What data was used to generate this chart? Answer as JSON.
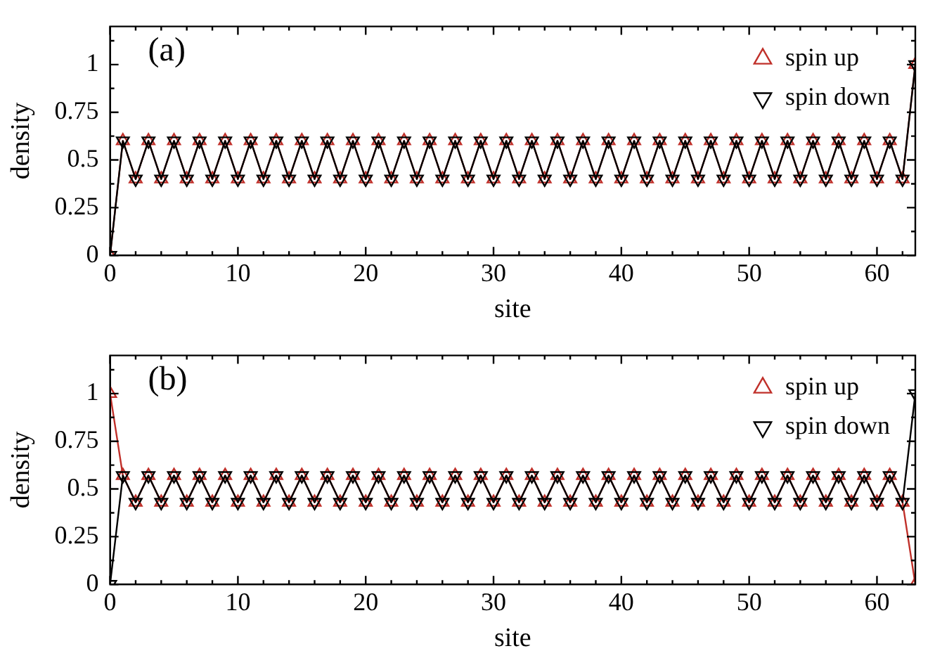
{
  "chart_data": [
    {
      "type": "line",
      "xlabel": "site",
      "ylabel": "density",
      "annotations": [
        "(a)"
      ],
      "legend": "top right",
      "marker": "triangle",
      "grid": false,
      "x": [
        0,
        1,
        2,
        3,
        4,
        5,
        6,
        7,
        8,
        9,
        10,
        11,
        12,
        13,
        14,
        15,
        16,
        17,
        18,
        19,
        20,
        21,
        22,
        23,
        24,
        25,
        26,
        27,
        28,
        29,
        30,
        31,
        32,
        33,
        34,
        35,
        36,
        37,
        38,
        39,
        40,
        41,
        42,
        43,
        44,
        45,
        46,
        47,
        48,
        49,
        50,
        51,
        52,
        53,
        54,
        55,
        56,
        57,
        58,
        59,
        60,
        61,
        62,
        63
      ],
      "xlim": [
        0,
        63
      ],
      "ylim": [
        0,
        1.2
      ],
      "xticks": [
        0,
        {
          "value": 2,
          "label": null
        },
        {
          "value": 4,
          "label": null
        },
        {
          "value": 6,
          "label": null
        },
        {
          "value": 8,
          "label": null
        },
        10,
        {
          "value": 12,
          "label": null
        },
        {
          "value": 14,
          "label": null
        },
        {
          "value": 16,
          "label": null
        },
        {
          "value": 18,
          "label": null
        },
        20,
        {
          "value": 22,
          "label": null
        },
        {
          "value": 24,
          "label": null
        },
        {
          "value": 26,
          "label": null
        },
        {
          "value": 28,
          "label": null
        },
        30,
        {
          "value": 32,
          "label": null
        },
        {
          "value": 34,
          "label": null
        },
        {
          "value": 36,
          "label": null
        },
        {
          "value": 38,
          "label": null
        },
        40,
        {
          "value": 42,
          "label": null
        },
        {
          "value": 44,
          "label": null
        },
        {
          "value": 46,
          "label": null
        },
        {
          "value": 48,
          "label": null
        },
        50,
        {
          "value": 52,
          "label": null
        },
        {
          "value": 54,
          "label": null
        },
        {
          "value": 56,
          "label": null
        },
        {
          "value": 58,
          "label": null
        },
        60,
        {
          "value": 62,
          "label": null
        }
      ],
      "yticks": [
        0,
        {
          "value": 0.125,
          "label": null
        },
        0.25,
        {
          "value": 0.375,
          "label": null
        },
        0.5,
        {
          "value": 0.625,
          "label": null
        },
        0.75,
        {
          "value": 0.875,
          "label": null
        },
        1,
        {
          "value": 1.125,
          "label": null
        }
      ],
      "series": [
        {
          "name": "spin up",
          "color": "#c0302a",
          "values": [
            0,
            0.6,
            0.4,
            0.6,
            0.4,
            0.6,
            0.4,
            0.6,
            0.4,
            0.6,
            0.4,
            0.6,
            0.4,
            0.6,
            0.4,
            0.6,
            0.4,
            0.6,
            0.4,
            0.6,
            0.4,
            0.6,
            0.4,
            0.6,
            0.4,
            0.6,
            0.4,
            0.6,
            0.4,
            0.6,
            0.4,
            0.6,
            0.4,
            0.6,
            0.4,
            0.6,
            0.4,
            0.6,
            0.4,
            0.6,
            0.4,
            0.6,
            0.4,
            0.6,
            0.4,
            0.6,
            0.4,
            0.6,
            0.4,
            0.6,
            0.4,
            0.6,
            0.4,
            0.6,
            0.4,
            0.6,
            0.4,
            0.6,
            0.4,
            0.6,
            0.4,
            0.6,
            0.4,
            1
          ]
        },
        {
          "name": "spin down",
          "color": "#000000",
          "values": [
            0,
            0.6,
            0.4,
            0.6,
            0.4,
            0.6,
            0.4,
            0.6,
            0.4,
            0.6,
            0.4,
            0.6,
            0.4,
            0.6,
            0.4,
            0.6,
            0.4,
            0.6,
            0.4,
            0.6,
            0.4,
            0.6,
            0.4,
            0.6,
            0.4,
            0.6,
            0.4,
            0.6,
            0.4,
            0.6,
            0.4,
            0.6,
            0.4,
            0.6,
            0.4,
            0.6,
            0.4,
            0.6,
            0.4,
            0.6,
            0.4,
            0.6,
            0.4,
            0.6,
            0.4,
            0.6,
            0.4,
            0.6,
            0.4,
            0.6,
            0.4,
            0.6,
            0.4,
            0.6,
            0.4,
            0.6,
            0.4,
            0.6,
            0.4,
            0.6,
            0.4,
            0.6,
            0.4,
            1
          ]
        }
      ]
    },
    {
      "type": "line",
      "xlabel": "site",
      "ylabel": "density",
      "annotations": [
        "(b)"
      ],
      "legend": "top right",
      "marker": "triangle",
      "grid": false,
      "x": [
        0,
        1,
        2,
        3,
        4,
        5,
        6,
        7,
        8,
        9,
        10,
        11,
        12,
        13,
        14,
        15,
        16,
        17,
        18,
        19,
        20,
        21,
        22,
        23,
        24,
        25,
        26,
        27,
        28,
        29,
        30,
        31,
        32,
        33,
        34,
        35,
        36,
        37,
        38,
        39,
        40,
        41,
        42,
        43,
        44,
        45,
        46,
        47,
        48,
        49,
        50,
        51,
        52,
        53,
        54,
        55,
        56,
        57,
        58,
        59,
        60,
        61,
        62,
        63
      ],
      "xlim": [
        0,
        63
      ],
      "ylim": [
        0,
        1.2
      ],
      "xticks": [
        0,
        {
          "value": 2,
          "label": null
        },
        {
          "value": 4,
          "label": null
        },
        {
          "value": 6,
          "label": null
        },
        {
          "value": 8,
          "label": null
        },
        10,
        {
          "value": 12,
          "label": null
        },
        {
          "value": 14,
          "label": null
        },
        {
          "value": 16,
          "label": null
        },
        {
          "value": 18,
          "label": null
        },
        20,
        {
          "value": 22,
          "label": null
        },
        {
          "value": 24,
          "label": null
        },
        {
          "value": 26,
          "label": null
        },
        {
          "value": 28,
          "label": null
        },
        30,
        {
          "value": 32,
          "label": null
        },
        {
          "value": 34,
          "label": null
        },
        {
          "value": 36,
          "label": null
        },
        {
          "value": 38,
          "label": null
        },
        40,
        {
          "value": 42,
          "label": null
        },
        {
          "value": 44,
          "label": null
        },
        {
          "value": 46,
          "label": null
        },
        {
          "value": 48,
          "label": null
        },
        50,
        {
          "value": 52,
          "label": null
        },
        {
          "value": 54,
          "label": null
        },
        {
          "value": 56,
          "label": null
        },
        {
          "value": 58,
          "label": null
        },
        60,
        {
          "value": 62,
          "label": null
        }
      ],
      "yticks": [
        0,
        {
          "value": 0.125,
          "label": null
        },
        0.25,
        {
          "value": 0.375,
          "label": null
        },
        0.5,
        {
          "value": 0.625,
          "label": null
        },
        0.75,
        {
          "value": 0.875,
          "label": null
        },
        1,
        {
          "value": 1.125,
          "label": null
        }
      ],
      "series": [
        {
          "name": "spin up",
          "color": "#c0302a",
          "values": [
            1,
            0.57,
            0.43,
            0.57,
            0.43,
            0.57,
            0.43,
            0.57,
            0.43,
            0.57,
            0.43,
            0.57,
            0.43,
            0.57,
            0.43,
            0.57,
            0.43,
            0.57,
            0.43,
            0.57,
            0.43,
            0.57,
            0.43,
            0.57,
            0.43,
            0.57,
            0.43,
            0.57,
            0.43,
            0.57,
            0.43,
            0.57,
            0.43,
            0.57,
            0.43,
            0.57,
            0.43,
            0.57,
            0.43,
            0.57,
            0.43,
            0.57,
            0.43,
            0.57,
            0.43,
            0.57,
            0.43,
            0.57,
            0.43,
            0.57,
            0.43,
            0.57,
            0.43,
            0.57,
            0.43,
            0.57,
            0.43,
            0.57,
            0.43,
            0.57,
            0.43,
            0.57,
            0.43,
            0
          ]
        },
        {
          "name": "spin down",
          "color": "#000000",
          "values": [
            0,
            0.57,
            0.43,
            0.57,
            0.43,
            0.57,
            0.43,
            0.57,
            0.43,
            0.57,
            0.43,
            0.57,
            0.43,
            0.57,
            0.43,
            0.57,
            0.43,
            0.57,
            0.43,
            0.57,
            0.43,
            0.57,
            0.43,
            0.57,
            0.43,
            0.57,
            0.43,
            0.57,
            0.43,
            0.57,
            0.43,
            0.57,
            0.43,
            0.57,
            0.43,
            0.57,
            0.43,
            0.57,
            0.43,
            0.57,
            0.43,
            0.57,
            0.43,
            0.57,
            0.43,
            0.57,
            0.43,
            0.57,
            0.43,
            0.57,
            0.43,
            0.57,
            0.43,
            0.57,
            0.43,
            0.57,
            0.43,
            0.57,
            0.43,
            0.57,
            0.43,
            0.57,
            0.43,
            1
          ]
        }
      ]
    }
  ]
}
